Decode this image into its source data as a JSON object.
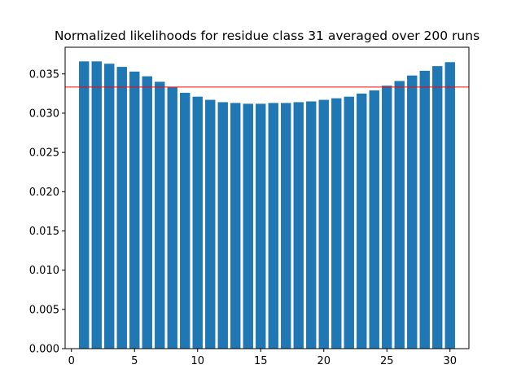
{
  "chart_data": {
    "type": "bar",
    "title": "Normalized likelihoods for residue class 31 averaged over 200 runs",
    "xlabel": "",
    "ylabel": "",
    "x": [
      1,
      2,
      3,
      4,
      5,
      6,
      7,
      8,
      9,
      10,
      11,
      12,
      13,
      14,
      15,
      16,
      17,
      18,
      19,
      20,
      21,
      22,
      23,
      24,
      25,
      26,
      27,
      28,
      29,
      30
    ],
    "values": [
      0.0366,
      0.0366,
      0.0363,
      0.0359,
      0.0353,
      0.0347,
      0.034,
      0.0333,
      0.0326,
      0.0321,
      0.0317,
      0.0314,
      0.0313,
      0.0312,
      0.0312,
      0.0313,
      0.0313,
      0.0314,
      0.0315,
      0.0317,
      0.0319,
      0.0321,
      0.0325,
      0.0329,
      0.0335,
      0.0341,
      0.0348,
      0.0354,
      0.036,
      0.0365
    ],
    "xlim": [
      -0.5,
      31.5
    ],
    "ylim": [
      0,
      0.0384
    ],
    "xticks": [
      0,
      5,
      10,
      15,
      20,
      25,
      30
    ],
    "xtick_labels": [
      "0",
      "5",
      "10",
      "15",
      "20",
      "25",
      "30"
    ],
    "yticks": [
      0.0,
      0.005,
      0.01,
      0.015,
      0.02,
      0.025,
      0.03,
      0.035
    ],
    "ytick_labels": [
      "0.000",
      "0.005",
      "0.010",
      "0.015",
      "0.020",
      "0.025",
      "0.030",
      "0.035"
    ],
    "reference_line": {
      "y": 0.03333,
      "color": "#ff0000"
    },
    "bar_color": "#1f77b4",
    "grid": false,
    "legend": "none"
  }
}
